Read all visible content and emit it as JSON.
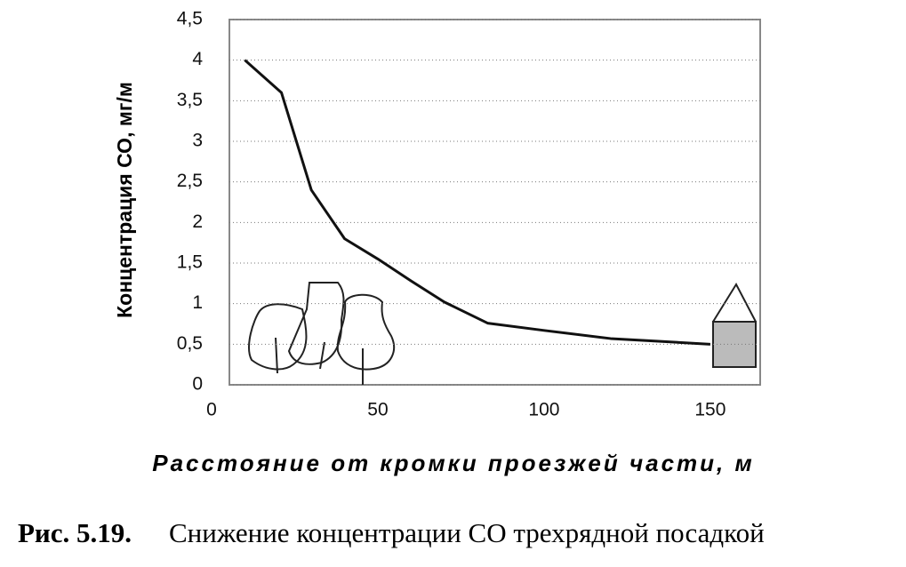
{
  "chart_data": {
    "type": "line",
    "y_label": "Концентрация СО, мг/м",
    "x_label": "Расстояние от кромки проезжей части, м",
    "caption_number": "Рис. 5.19.",
    "caption": "Снижение концентрации СО трехрядной посадкой",
    "x": [
      10,
      21,
      30,
      40,
      50,
      60,
      70,
      83,
      100,
      120,
      150
    ],
    "series": [
      {
        "color": "#111111",
        "values": [
          4.0,
          3.6,
          2.4,
          1.8,
          1.55,
          1.28,
          1.02,
          0.76,
          0.67,
          0.57,
          0.5
        ]
      }
    ],
    "xlim": [
      0,
      165
    ],
    "ylim": [
      0,
      4.5
    ],
    "xticks": [
      0,
      50,
      100,
      150
    ],
    "yticks": [
      0,
      {
        "value": 0.5,
        "label": "0,5"
      },
      1,
      {
        "value": 1.5,
        "label": "1,5"
      },
      2,
      {
        "value": 2.5,
        "label": "2,5"
      },
      3,
      {
        "value": 3.5,
        "label": "3,5"
      },
      4,
      {
        "value": 4.5,
        "label": "4,5"
      }
    ],
    "grid": true
  }
}
